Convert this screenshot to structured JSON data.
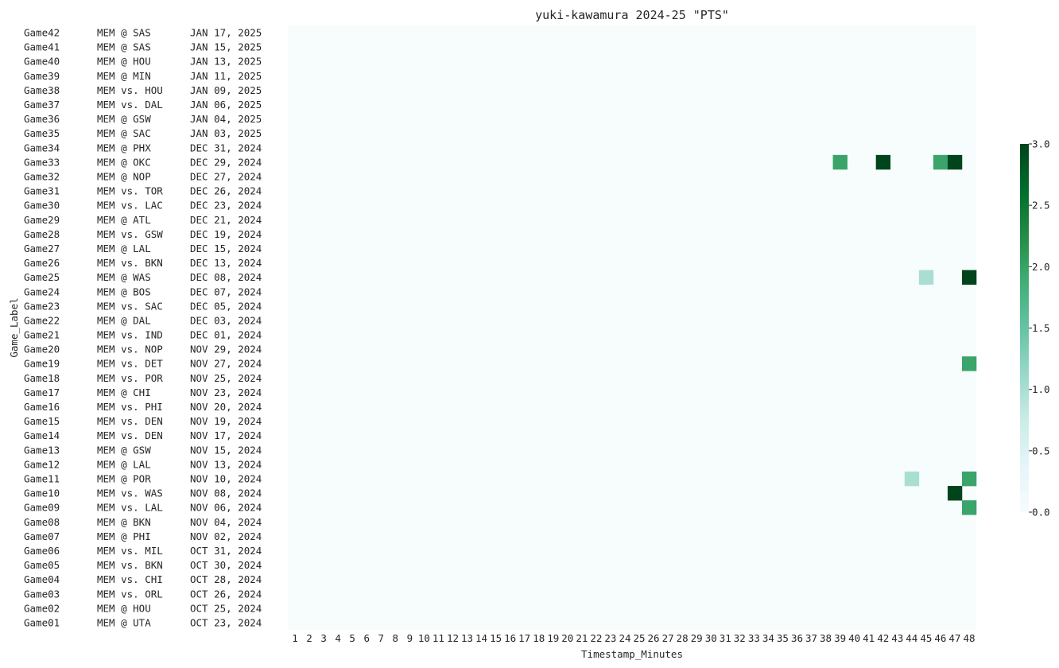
{
  "chart_data": {
    "type": "heatmap",
    "title": "yuki-kawamura 2024-25 \"PTS\"",
    "xlabel": "Timestamp_Minutes",
    "ylabel": "Game_Label",
    "x": [
      1,
      2,
      3,
      4,
      5,
      6,
      7,
      8,
      9,
      10,
      11,
      12,
      13,
      14,
      15,
      16,
      17,
      18,
      19,
      20,
      21,
      22,
      23,
      24,
      25,
      26,
      27,
      28,
      29,
      30,
      31,
      32,
      33,
      34,
      35,
      36,
      37,
      38,
      39,
      40,
      41,
      42,
      43,
      44,
      45,
      46,
      47,
      48
    ],
    "rows": [
      {
        "game": "Game42",
        "matchup": "MEM @ SAS",
        "date": "JAN 17, 2025"
      },
      {
        "game": "Game41",
        "matchup": "MEM @ SAS",
        "date": "JAN 15, 2025"
      },
      {
        "game": "Game40",
        "matchup": "MEM @ HOU",
        "date": "JAN 13, 2025"
      },
      {
        "game": "Game39",
        "matchup": "MEM @ MIN",
        "date": "JAN 11, 2025"
      },
      {
        "game": "Game38",
        "matchup": "MEM vs. HOU",
        "date": "JAN 09, 2025"
      },
      {
        "game": "Game37",
        "matchup": "MEM vs. DAL",
        "date": "JAN 06, 2025"
      },
      {
        "game": "Game36",
        "matchup": "MEM @ GSW",
        "date": "JAN 04, 2025"
      },
      {
        "game": "Game35",
        "matchup": "MEM @ SAC",
        "date": "JAN 03, 2025"
      },
      {
        "game": "Game34",
        "matchup": "MEM @ PHX",
        "date": "DEC 31, 2024"
      },
      {
        "game": "Game33",
        "matchup": "MEM @ OKC",
        "date": "DEC 29, 2024"
      },
      {
        "game": "Game32",
        "matchup": "MEM @ NOP",
        "date": "DEC 27, 2024"
      },
      {
        "game": "Game31",
        "matchup": "MEM vs. TOR",
        "date": "DEC 26, 2024"
      },
      {
        "game": "Game30",
        "matchup": "MEM vs. LAC",
        "date": "DEC 23, 2024"
      },
      {
        "game": "Game29",
        "matchup": "MEM @ ATL",
        "date": "DEC 21, 2024"
      },
      {
        "game": "Game28",
        "matchup": "MEM vs. GSW",
        "date": "DEC 19, 2024"
      },
      {
        "game": "Game27",
        "matchup": "MEM @ LAL",
        "date": "DEC 15, 2024"
      },
      {
        "game": "Game26",
        "matchup": "MEM vs. BKN",
        "date": "DEC 13, 2024"
      },
      {
        "game": "Game25",
        "matchup": "MEM @ WAS",
        "date": "DEC 08, 2024"
      },
      {
        "game": "Game24",
        "matchup": "MEM @ BOS",
        "date": "DEC 07, 2024"
      },
      {
        "game": "Game23",
        "matchup": "MEM vs. SAC",
        "date": "DEC 05, 2024"
      },
      {
        "game": "Game22",
        "matchup": "MEM @ DAL",
        "date": "DEC 03, 2024"
      },
      {
        "game": "Game21",
        "matchup": "MEM vs. IND",
        "date": "DEC 01, 2024"
      },
      {
        "game": "Game20",
        "matchup": "MEM vs. NOP",
        "date": "NOV 29, 2024"
      },
      {
        "game": "Game19",
        "matchup": "MEM vs. DET",
        "date": "NOV 27, 2024"
      },
      {
        "game": "Game18",
        "matchup": "MEM vs. POR",
        "date": "NOV 25, 2024"
      },
      {
        "game": "Game17",
        "matchup": "MEM @ CHI",
        "date": "NOV 23, 2024"
      },
      {
        "game": "Game16",
        "matchup": "MEM vs. PHI",
        "date": "NOV 20, 2024"
      },
      {
        "game": "Game15",
        "matchup": "MEM vs. DEN",
        "date": "NOV 19, 2024"
      },
      {
        "game": "Game14",
        "matchup": "MEM vs. DEN",
        "date": "NOV 17, 2024"
      },
      {
        "game": "Game13",
        "matchup": "MEM @ GSW",
        "date": "NOV 15, 2024"
      },
      {
        "game": "Game12",
        "matchup": "MEM @ LAL",
        "date": "NOV 13, 2024"
      },
      {
        "game": "Game11",
        "matchup": "MEM @ POR",
        "date": "NOV 10, 2024"
      },
      {
        "game": "Game10",
        "matchup": "MEM vs. WAS",
        "date": "NOV 08, 2024"
      },
      {
        "game": "Game09",
        "matchup": "MEM vs. LAL",
        "date": "NOV 06, 2024"
      },
      {
        "game": "Game08",
        "matchup": "MEM @ BKN",
        "date": "NOV 04, 2024"
      },
      {
        "game": "Game07",
        "matchup": "MEM @ PHI",
        "date": "NOV 02, 2024"
      },
      {
        "game": "Game06",
        "matchup": "MEM vs. MIL",
        "date": "OCT 31, 2024"
      },
      {
        "game": "Game05",
        "matchup": "MEM vs. BKN",
        "date": "OCT 30, 2024"
      },
      {
        "game": "Game04",
        "matchup": "MEM vs. CHI",
        "date": "OCT 28, 2024"
      },
      {
        "game": "Game03",
        "matchup": "MEM vs. ORL",
        "date": "OCT 26, 2024"
      },
      {
        "game": "Game02",
        "matchup": "MEM @ HOU",
        "date": "OCT 25, 2024"
      },
      {
        "game": "Game01",
        "matchup": "MEM @ UTA",
        "date": "OCT 23, 2024"
      }
    ],
    "cells": [
      {
        "game": "Game33",
        "minute": 39,
        "value": 2
      },
      {
        "game": "Game33",
        "minute": 42,
        "value": 3
      },
      {
        "game": "Game33",
        "minute": 46,
        "value": 2
      },
      {
        "game": "Game33",
        "minute": 47,
        "value": 3
      },
      {
        "game": "Game25",
        "minute": 45,
        "value": 1
      },
      {
        "game": "Game25",
        "minute": 48,
        "value": 3
      },
      {
        "game": "Game19",
        "minute": 48,
        "value": 2
      },
      {
        "game": "Game11",
        "minute": 44,
        "value": 1
      },
      {
        "game": "Game11",
        "minute": 48,
        "value": 2
      },
      {
        "game": "Game10",
        "minute": 47,
        "value": 3
      },
      {
        "game": "Game09",
        "minute": 48,
        "value": 2
      }
    ],
    "default_value": 0,
    "vmin": 0,
    "vmax": 3,
    "colorbar_ticks": [
      "0.0",
      "0.5",
      "1.0",
      "1.5",
      "2.0",
      "2.5",
      "3.0"
    ],
    "colormap": {
      "0": "#f7fcfd",
      "1": "#a8dfd2",
      "2": "#3aa46a",
      "3": "#00441b"
    },
    "colormap_stops": [
      "#f7fcfd",
      "#e5f5f9",
      "#ccece6",
      "#99d8c9",
      "#66c2a4",
      "#41ae76",
      "#238b45",
      "#006d2c",
      "#00441b"
    ]
  }
}
